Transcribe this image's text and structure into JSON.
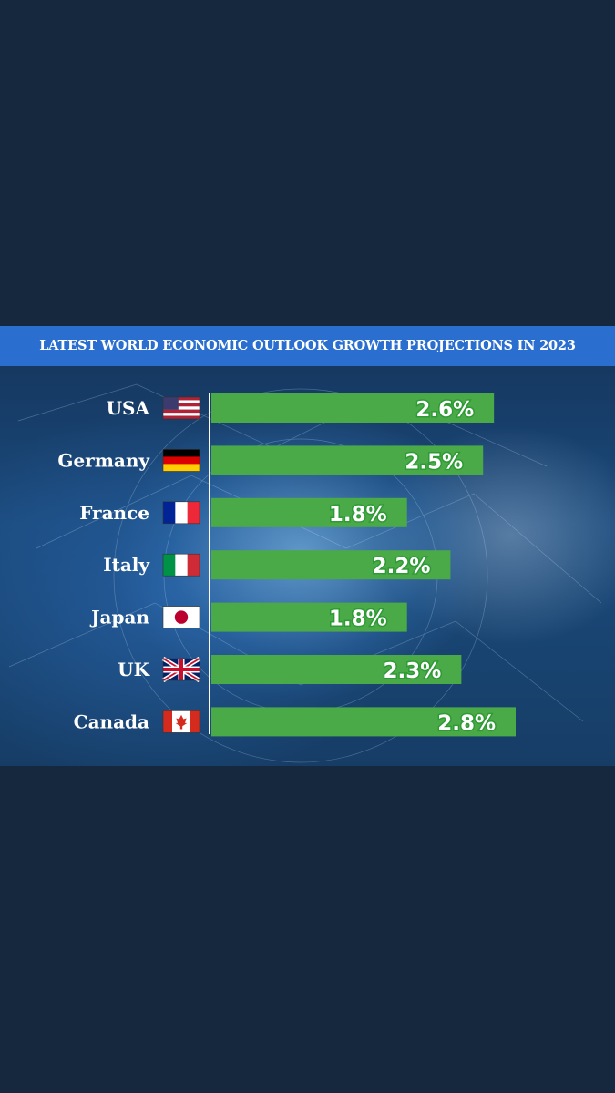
{
  "title": "LATEST WORLD ECONOMIC OUTLOOK GROWTH PROJECTIONS IN 2023",
  "colors": {
    "bar": "#4aaa48",
    "title_bar": "#2a6fd0",
    "background": "#16283d"
  },
  "chart_data": {
    "type": "bar",
    "orientation": "horizontal",
    "title": "LATEST WORLD ECONOMIC OUTLOOK GROWTH PROJECTIONS IN 2023",
    "categories": [
      "USA",
      "Germany",
      "France",
      "Italy",
      "Japan",
      "UK",
      "Canada"
    ],
    "flags": [
      "flag-usa-icon",
      "flag-germany-icon",
      "flag-france-icon",
      "flag-italy-icon",
      "flag-japan-icon",
      "flag-uk-icon",
      "flag-canada-icon"
    ],
    "values": [
      2.6,
      2.5,
      1.8,
      2.2,
      1.8,
      2.3,
      2.8
    ],
    "data_labels": [
      "2.6%",
      "2.5%",
      "1.8%",
      "2.2%",
      "1.8%",
      "2.3%",
      "2.8%"
    ],
    "xlim": [
      0,
      2.8
    ],
    "grid": false,
    "legend": "none"
  }
}
